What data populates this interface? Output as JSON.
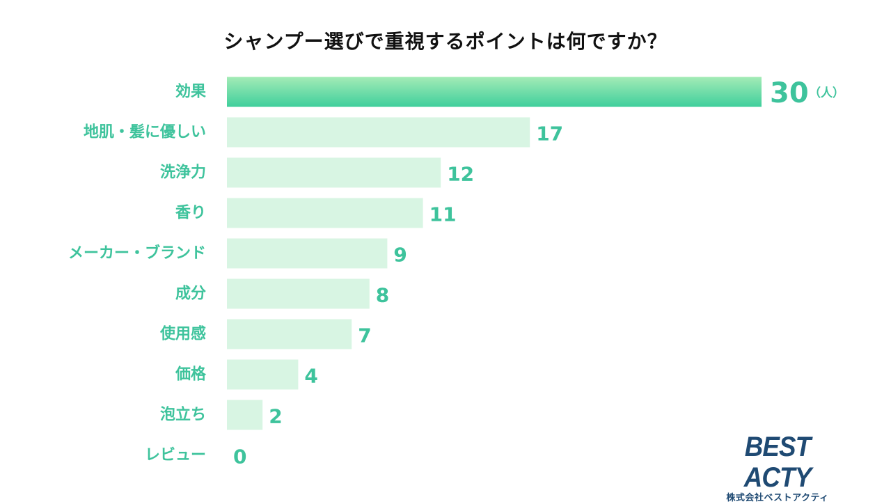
{
  "title": "シャンプー選びで重視するポイントは何ですか？",
  "unit_label": "（人）",
  "colors": {
    "highlight_top": "#a3ebb6",
    "highlight_bottom": "#3fcf9c",
    "bar": "#d8f5e3",
    "label": "#3ec39c",
    "title": "#111111",
    "logo": "#1f4a73"
  },
  "logo": {
    "name": "BEST ACTY",
    "company": "株式会社ベストアクティ"
  },
  "chart_data": {
    "type": "bar",
    "orientation": "horizontal",
    "title": "シャンプー選びで重視するポイントは何ですか？",
    "unit": "（人）",
    "categories": [
      "効果",
      "地肌・髪に優しい",
      "洗浄力",
      "香り",
      "メーカー・ブランド",
      "成分",
      "使用感",
      "価格",
      "泡立ち",
      "レビュー"
    ],
    "values": [
      30,
      17,
      12,
      11,
      9,
      8,
      7,
      4,
      2,
      0
    ],
    "xlim": [
      0,
      30
    ],
    "grid": false,
    "legend": "none"
  }
}
